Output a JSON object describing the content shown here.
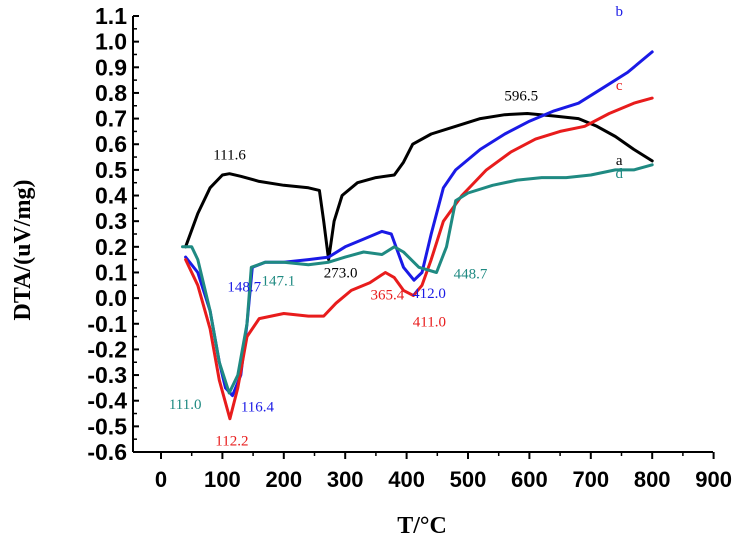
{
  "chart_data": {
    "type": "line",
    "title": "",
    "xlabel": "T/°C",
    "ylabel": "DTA/(uV/mg)",
    "xlim": [
      -50,
      900
    ],
    "ylim": [
      -0.6,
      1.1
    ],
    "x_ticks": [
      "0",
      "100",
      "200",
      "300",
      "400",
      "500",
      "600",
      "700",
      "800",
      "900"
    ],
    "y_ticks": [
      "1.1",
      "1.0",
      "0.9",
      "0.8",
      "0.7",
      "0.6",
      "0.5",
      "0.4",
      "0.3",
      "0.2",
      "0.1",
      "0.0",
      "-0.1",
      "-0.2",
      "-0.3",
      "-0.4",
      "-0.5",
      "-0.6"
    ],
    "grid": false,
    "series": [
      {
        "name": "a",
        "color": "#000000",
        "points": [
          [
            40,
            0.2
          ],
          [
            60,
            0.33
          ],
          [
            80,
            0.43
          ],
          [
            100,
            0.48
          ],
          [
            111.6,
            0.485
          ],
          [
            130,
            0.475
          ],
          [
            160,
            0.455
          ],
          [
            200,
            0.44
          ],
          [
            240,
            0.43
          ],
          [
            258,
            0.42
          ],
          [
            265,
            0.3
          ],
          [
            273,
            0.15
          ],
          [
            282,
            0.3
          ],
          [
            295,
            0.4
          ],
          [
            320,
            0.45
          ],
          [
            350,
            0.47
          ],
          [
            380,
            0.48
          ],
          [
            395,
            0.53
          ],
          [
            410,
            0.6
          ],
          [
            440,
            0.64
          ],
          [
            480,
            0.67
          ],
          [
            520,
            0.7
          ],
          [
            560,
            0.715
          ],
          [
            596.5,
            0.72
          ],
          [
            640,
            0.71
          ],
          [
            680,
            0.7
          ],
          [
            710,
            0.67
          ],
          [
            740,
            0.63
          ],
          [
            770,
            0.58
          ],
          [
            800,
            0.535
          ]
        ]
      },
      {
        "name": "b",
        "color": "#1a1ae6",
        "points": [
          [
            40,
            0.16
          ],
          [
            60,
            0.1
          ],
          [
            80,
            -0.05
          ],
          [
            95,
            -0.25
          ],
          [
            105,
            -0.35
          ],
          [
            116.4,
            -0.38
          ],
          [
            130,
            -0.3
          ],
          [
            140,
            -0.1
          ],
          [
            148.7,
            0.12
          ],
          [
            170,
            0.14
          ],
          [
            200,
            0.14
          ],
          [
            240,
            0.15
          ],
          [
            273,
            0.16
          ],
          [
            300,
            0.2
          ],
          [
            330,
            0.23
          ],
          [
            360,
            0.26
          ],
          [
            375,
            0.25
          ],
          [
            395,
            0.12
          ],
          [
            412,
            0.07
          ],
          [
            425,
            0.1
          ],
          [
            440,
            0.25
          ],
          [
            460,
            0.43
          ],
          [
            480,
            0.5
          ],
          [
            520,
            0.58
          ],
          [
            560,
            0.64
          ],
          [
            600,
            0.69
          ],
          [
            640,
            0.73
          ],
          [
            680,
            0.76
          ],
          [
            720,
            0.82
          ],
          [
            760,
            0.88
          ],
          [
            800,
            0.96
          ]
        ]
      },
      {
        "name": "c",
        "color": "#e81c1c",
        "points": [
          [
            40,
            0.15
          ],
          [
            60,
            0.05
          ],
          [
            80,
            -0.12
          ],
          [
            95,
            -0.32
          ],
          [
            112.2,
            -0.47
          ],
          [
            125,
            -0.35
          ],
          [
            140,
            -0.15
          ],
          [
            160,
            -0.08
          ],
          [
            200,
            -0.06
          ],
          [
            240,
            -0.07
          ],
          [
            265,
            -0.07
          ],
          [
            285,
            -0.02
          ],
          [
            310,
            0.03
          ],
          [
            340,
            0.06
          ],
          [
            365.4,
            0.1
          ],
          [
            380,
            0.08
          ],
          [
            395,
            0.03
          ],
          [
            411,
            0.01
          ],
          [
            425,
            0.05
          ],
          [
            440,
            0.15
          ],
          [
            460,
            0.3
          ],
          [
            490,
            0.4
          ],
          [
            530,
            0.5
          ],
          [
            570,
            0.57
          ],
          [
            610,
            0.62
          ],
          [
            650,
            0.65
          ],
          [
            690,
            0.67
          ],
          [
            730,
            0.72
          ],
          [
            770,
            0.76
          ],
          [
            800,
            0.78
          ]
        ]
      },
      {
        "name": "d",
        "color": "#1f8a82",
        "points": [
          [
            35,
            0.2
          ],
          [
            50,
            0.2
          ],
          [
            60,
            0.15
          ],
          [
            80,
            -0.05
          ],
          [
            95,
            -0.25
          ],
          [
            111,
            -0.37
          ],
          [
            125,
            -0.3
          ],
          [
            140,
            -0.1
          ],
          [
            147.1,
            0.12
          ],
          [
            170,
            0.14
          ],
          [
            200,
            0.14
          ],
          [
            240,
            0.13
          ],
          [
            273,
            0.14
          ],
          [
            300,
            0.16
          ],
          [
            330,
            0.18
          ],
          [
            360,
            0.17
          ],
          [
            380,
            0.2
          ],
          [
            395,
            0.18
          ],
          [
            420,
            0.12
          ],
          [
            448.7,
            0.1
          ],
          [
            465,
            0.2
          ],
          [
            480,
            0.38
          ],
          [
            500,
            0.41
          ],
          [
            540,
            0.44
          ],
          [
            580,
            0.46
          ],
          [
            620,
            0.47
          ],
          [
            660,
            0.47
          ],
          [
            700,
            0.48
          ],
          [
            740,
            0.5
          ],
          [
            770,
            0.5
          ],
          [
            800,
            0.52
          ]
        ]
      }
    ],
    "annotations": [
      {
        "text": "111.6",
        "x": 111.6,
        "y": 0.485,
        "color": "#000000"
      },
      {
        "text": "273.0",
        "x": 273.0,
        "y": 0.15,
        "color": "#000000"
      },
      {
        "text": "596.5",
        "x": 596.5,
        "y": 0.72,
        "color": "#000000"
      },
      {
        "text": "148.7",
        "x": 148.7,
        "y": 0.12,
        "color": "#1a1ae6"
      },
      {
        "text": "116.4",
        "x": 116.4,
        "y": -0.38,
        "color": "#1a1ae6"
      },
      {
        "text": "412.0",
        "x": 412.0,
        "y": 0.07,
        "color": "#1a1ae6"
      },
      {
        "text": "112.2",
        "x": 112.2,
        "y": -0.47,
        "color": "#e81c1c"
      },
      {
        "text": "365.4",
        "x": 365.4,
        "y": 0.1,
        "color": "#e81c1c"
      },
      {
        "text": "411.0",
        "x": 411.0,
        "y": 0.01,
        "color": "#e81c1c"
      },
      {
        "text": "111.0",
        "x": 111.0,
        "y": -0.37,
        "color": "#1f8a82"
      },
      {
        "text": "147.1",
        "x": 147.1,
        "y": 0.12,
        "color": "#1f8a82"
      },
      {
        "text": "448.7",
        "x": 448.7,
        "y": 0.1,
        "color": "#1f8a82"
      }
    ],
    "series_labels": [
      {
        "text": "a",
        "series": "a"
      },
      {
        "text": "b",
        "series": "b"
      },
      {
        "text": "c",
        "series": "c"
      },
      {
        "text": "d",
        "series": "d"
      }
    ]
  }
}
